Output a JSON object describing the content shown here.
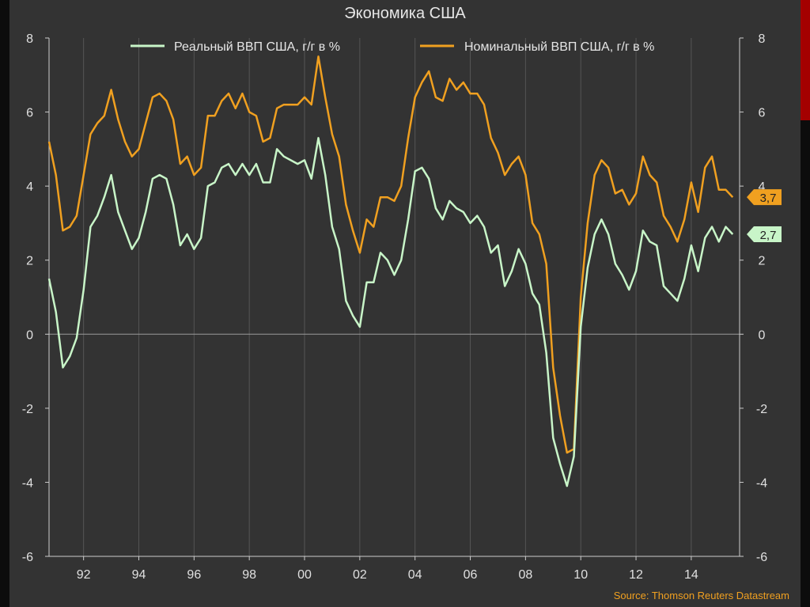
{
  "title": "Экономика США",
  "source": "Source: Thomson Reuters Datastream",
  "colors": {
    "real": "#c8f5c8",
    "nominal": "#f0a020",
    "background": "#333333",
    "grid": "#555555"
  },
  "chart_data": {
    "type": "line",
    "title": "Экономика США",
    "xlabel": "",
    "ylabel": "",
    "ylim": [
      -6,
      8
    ],
    "xlim": [
      1990.75,
      2015.75
    ],
    "y_ticks": [
      -6,
      -4,
      -2,
      0,
      2,
      4,
      6,
      8
    ],
    "x_ticks": [
      1992,
      1994,
      1996,
      1998,
      2000,
      2002,
      2004,
      2006,
      2008,
      2010,
      2012,
      2014
    ],
    "x_tick_labels": [
      "92",
      "94",
      "96",
      "98",
      "00",
      "02",
      "04",
      "06",
      "08",
      "10",
      "12",
      "14"
    ],
    "legend_position": "top",
    "grid": true,
    "series": [
      {
        "name": "Реальный ВВП США, г/г в %",
        "color": "#c8f5c8",
        "last_label": "2,7",
        "points": [
          [
            1990.75,
            1.5
          ],
          [
            1991.0,
            0.6
          ],
          [
            1991.25,
            -0.9
          ],
          [
            1991.5,
            -0.6
          ],
          [
            1991.75,
            -0.1
          ],
          [
            1992.0,
            1.2
          ],
          [
            1992.25,
            2.9
          ],
          [
            1992.5,
            3.2
          ],
          [
            1992.75,
            3.7
          ],
          [
            1993.0,
            4.3
          ],
          [
            1993.25,
            3.3
          ],
          [
            1993.5,
            2.8
          ],
          [
            1993.75,
            2.3
          ],
          [
            1994.0,
            2.6
          ],
          [
            1994.25,
            3.3
          ],
          [
            1994.5,
            4.2
          ],
          [
            1994.75,
            4.3
          ],
          [
            1995.0,
            4.2
          ],
          [
            1995.25,
            3.5
          ],
          [
            1995.5,
            2.4
          ],
          [
            1995.75,
            2.7
          ],
          [
            1996.0,
            2.3
          ],
          [
            1996.25,
            2.6
          ],
          [
            1996.5,
            4.0
          ],
          [
            1996.75,
            4.1
          ],
          [
            1997.0,
            4.5
          ],
          [
            1997.25,
            4.6
          ],
          [
            1997.5,
            4.3
          ],
          [
            1997.75,
            4.6
          ],
          [
            1998.0,
            4.3
          ],
          [
            1998.25,
            4.6
          ],
          [
            1998.5,
            4.1
          ],
          [
            1998.75,
            4.1
          ],
          [
            1999.0,
            5.0
          ],
          [
            1999.25,
            4.8
          ],
          [
            1999.5,
            4.7
          ],
          [
            1999.75,
            4.6
          ],
          [
            2000.0,
            4.7
          ],
          [
            2000.25,
            4.2
          ],
          [
            2000.5,
            5.3
          ],
          [
            2000.75,
            4.3
          ],
          [
            2001.0,
            2.9
          ],
          [
            2001.25,
            2.3
          ],
          [
            2001.5,
            0.9
          ],
          [
            2001.75,
            0.5
          ],
          [
            2002.0,
            0.2
          ],
          [
            2002.25,
            1.4
          ],
          [
            2002.5,
            1.4
          ],
          [
            2002.75,
            2.2
          ],
          [
            2003.0,
            2.0
          ],
          [
            2003.25,
            1.6
          ],
          [
            2003.5,
            2.0
          ],
          [
            2003.75,
            3.1
          ],
          [
            2004.0,
            4.4
          ],
          [
            2004.25,
            4.5
          ],
          [
            2004.5,
            4.2
          ],
          [
            2004.75,
            3.4
          ],
          [
            2005.0,
            3.1
          ],
          [
            2005.25,
            3.6
          ],
          [
            2005.5,
            3.4
          ],
          [
            2005.75,
            3.3
          ],
          [
            2006.0,
            3.0
          ],
          [
            2006.25,
            3.2
          ],
          [
            2006.5,
            2.9
          ],
          [
            2006.75,
            2.2
          ],
          [
            2007.0,
            2.4
          ],
          [
            2007.25,
            1.3
          ],
          [
            2007.5,
            1.7
          ],
          [
            2007.75,
            2.3
          ],
          [
            2008.0,
            1.9
          ],
          [
            2008.25,
            1.1
          ],
          [
            2008.5,
            0.8
          ],
          [
            2008.75,
            -0.5
          ],
          [
            2009.0,
            -2.8
          ],
          [
            2009.25,
            -3.5
          ],
          [
            2009.5,
            -4.1
          ],
          [
            2009.75,
            -3.3
          ],
          [
            2010.0,
            0.2
          ],
          [
            2010.25,
            1.8
          ],
          [
            2010.5,
            2.7
          ],
          [
            2010.75,
            3.1
          ],
          [
            2011.0,
            2.7
          ],
          [
            2011.25,
            1.9
          ],
          [
            2011.5,
            1.6
          ],
          [
            2011.75,
            1.2
          ],
          [
            2012.0,
            1.7
          ],
          [
            2012.25,
            2.8
          ],
          [
            2012.5,
            2.5
          ],
          [
            2012.75,
            2.4
          ],
          [
            2013.0,
            1.3
          ],
          [
            2013.25,
            1.1
          ],
          [
            2013.5,
            0.9
          ],
          [
            2013.75,
            1.5
          ],
          [
            2014.0,
            2.4
          ],
          [
            2014.25,
            1.7
          ],
          [
            2014.5,
            2.6
          ],
          [
            2014.75,
            2.9
          ],
          [
            2015.0,
            2.5
          ],
          [
            2015.25,
            2.9
          ],
          [
            2015.5,
            2.7
          ]
        ]
      },
      {
        "name": "Номинальный ВВП США, г/г в %",
        "color": "#f0a020",
        "last_label": "3,7",
        "points": [
          [
            1990.75,
            5.2
          ],
          [
            1991.0,
            4.3
          ],
          [
            1991.25,
            2.8
          ],
          [
            1991.5,
            2.9
          ],
          [
            1991.75,
            3.2
          ],
          [
            1992.0,
            4.3
          ],
          [
            1992.25,
            5.4
          ],
          [
            1992.5,
            5.7
          ],
          [
            1992.75,
            5.9
          ],
          [
            1993.0,
            6.6
          ],
          [
            1993.25,
            5.8
          ],
          [
            1993.5,
            5.2
          ],
          [
            1993.75,
            4.8
          ],
          [
            1994.0,
            5.0
          ],
          [
            1994.25,
            5.7
          ],
          [
            1994.5,
            6.4
          ],
          [
            1994.75,
            6.5
          ],
          [
            1995.0,
            6.3
          ],
          [
            1995.25,
            5.8
          ],
          [
            1995.5,
            4.6
          ],
          [
            1995.75,
            4.8
          ],
          [
            1996.0,
            4.3
          ],
          [
            1996.25,
            4.5
          ],
          [
            1996.5,
            5.9
          ],
          [
            1996.75,
            5.9
          ],
          [
            1997.0,
            6.3
          ],
          [
            1997.25,
            6.5
          ],
          [
            1997.5,
            6.1
          ],
          [
            1997.75,
            6.5
          ],
          [
            1998.0,
            6.0
          ],
          [
            1998.25,
            5.9
          ],
          [
            1998.5,
            5.2
          ],
          [
            1998.75,
            5.3
          ],
          [
            1999.0,
            6.1
          ],
          [
            1999.25,
            6.2
          ],
          [
            1999.5,
            6.2
          ],
          [
            1999.75,
            6.2
          ],
          [
            2000.0,
            6.4
          ],
          [
            2000.25,
            6.2
          ],
          [
            2000.5,
            7.5
          ],
          [
            2000.75,
            6.4
          ],
          [
            2001.0,
            5.4
          ],
          [
            2001.25,
            4.8
          ],
          [
            2001.5,
            3.5
          ],
          [
            2001.75,
            2.8
          ],
          [
            2002.0,
            2.2
          ],
          [
            2002.25,
            3.1
          ],
          [
            2002.5,
            2.9
          ],
          [
            2002.75,
            3.7
          ],
          [
            2003.0,
            3.7
          ],
          [
            2003.25,
            3.6
          ],
          [
            2003.5,
            4.0
          ],
          [
            2003.75,
            5.3
          ],
          [
            2004.0,
            6.4
          ],
          [
            2004.25,
            6.8
          ],
          [
            2004.5,
            7.1
          ],
          [
            2004.75,
            6.4
          ],
          [
            2005.0,
            6.3
          ],
          [
            2005.25,
            6.9
          ],
          [
            2005.5,
            6.6
          ],
          [
            2005.75,
            6.8
          ],
          [
            2006.0,
            6.5
          ],
          [
            2006.25,
            6.5
          ],
          [
            2006.5,
            6.2
          ],
          [
            2006.75,
            5.3
          ],
          [
            2007.0,
            4.9
          ],
          [
            2007.25,
            4.3
          ],
          [
            2007.5,
            4.6
          ],
          [
            2007.75,
            4.8
          ],
          [
            2008.0,
            4.3
          ],
          [
            2008.25,
            3.0
          ],
          [
            2008.5,
            2.7
          ],
          [
            2008.75,
            1.9
          ],
          [
            2009.0,
            -0.9
          ],
          [
            2009.25,
            -2.2
          ],
          [
            2009.5,
            -3.2
          ],
          [
            2009.75,
            -3.1
          ],
          [
            2010.0,
            1.0
          ],
          [
            2010.25,
            3.0
          ],
          [
            2010.5,
            4.3
          ],
          [
            2010.75,
            4.7
          ],
          [
            2011.0,
            4.5
          ],
          [
            2011.25,
            3.8
          ],
          [
            2011.5,
            3.9
          ],
          [
            2011.75,
            3.5
          ],
          [
            2012.0,
            3.8
          ],
          [
            2012.25,
            4.8
          ],
          [
            2012.5,
            4.3
          ],
          [
            2012.75,
            4.1
          ],
          [
            2013.0,
            3.2
          ],
          [
            2013.25,
            2.9
          ],
          [
            2013.5,
            2.5
          ],
          [
            2013.75,
            3.1
          ],
          [
            2014.0,
            4.1
          ],
          [
            2014.25,
            3.3
          ],
          [
            2014.5,
            4.5
          ],
          [
            2014.75,
            4.8
          ],
          [
            2015.0,
            3.9
          ],
          [
            2015.25,
            3.9
          ],
          [
            2015.5,
            3.7
          ]
        ]
      }
    ]
  }
}
